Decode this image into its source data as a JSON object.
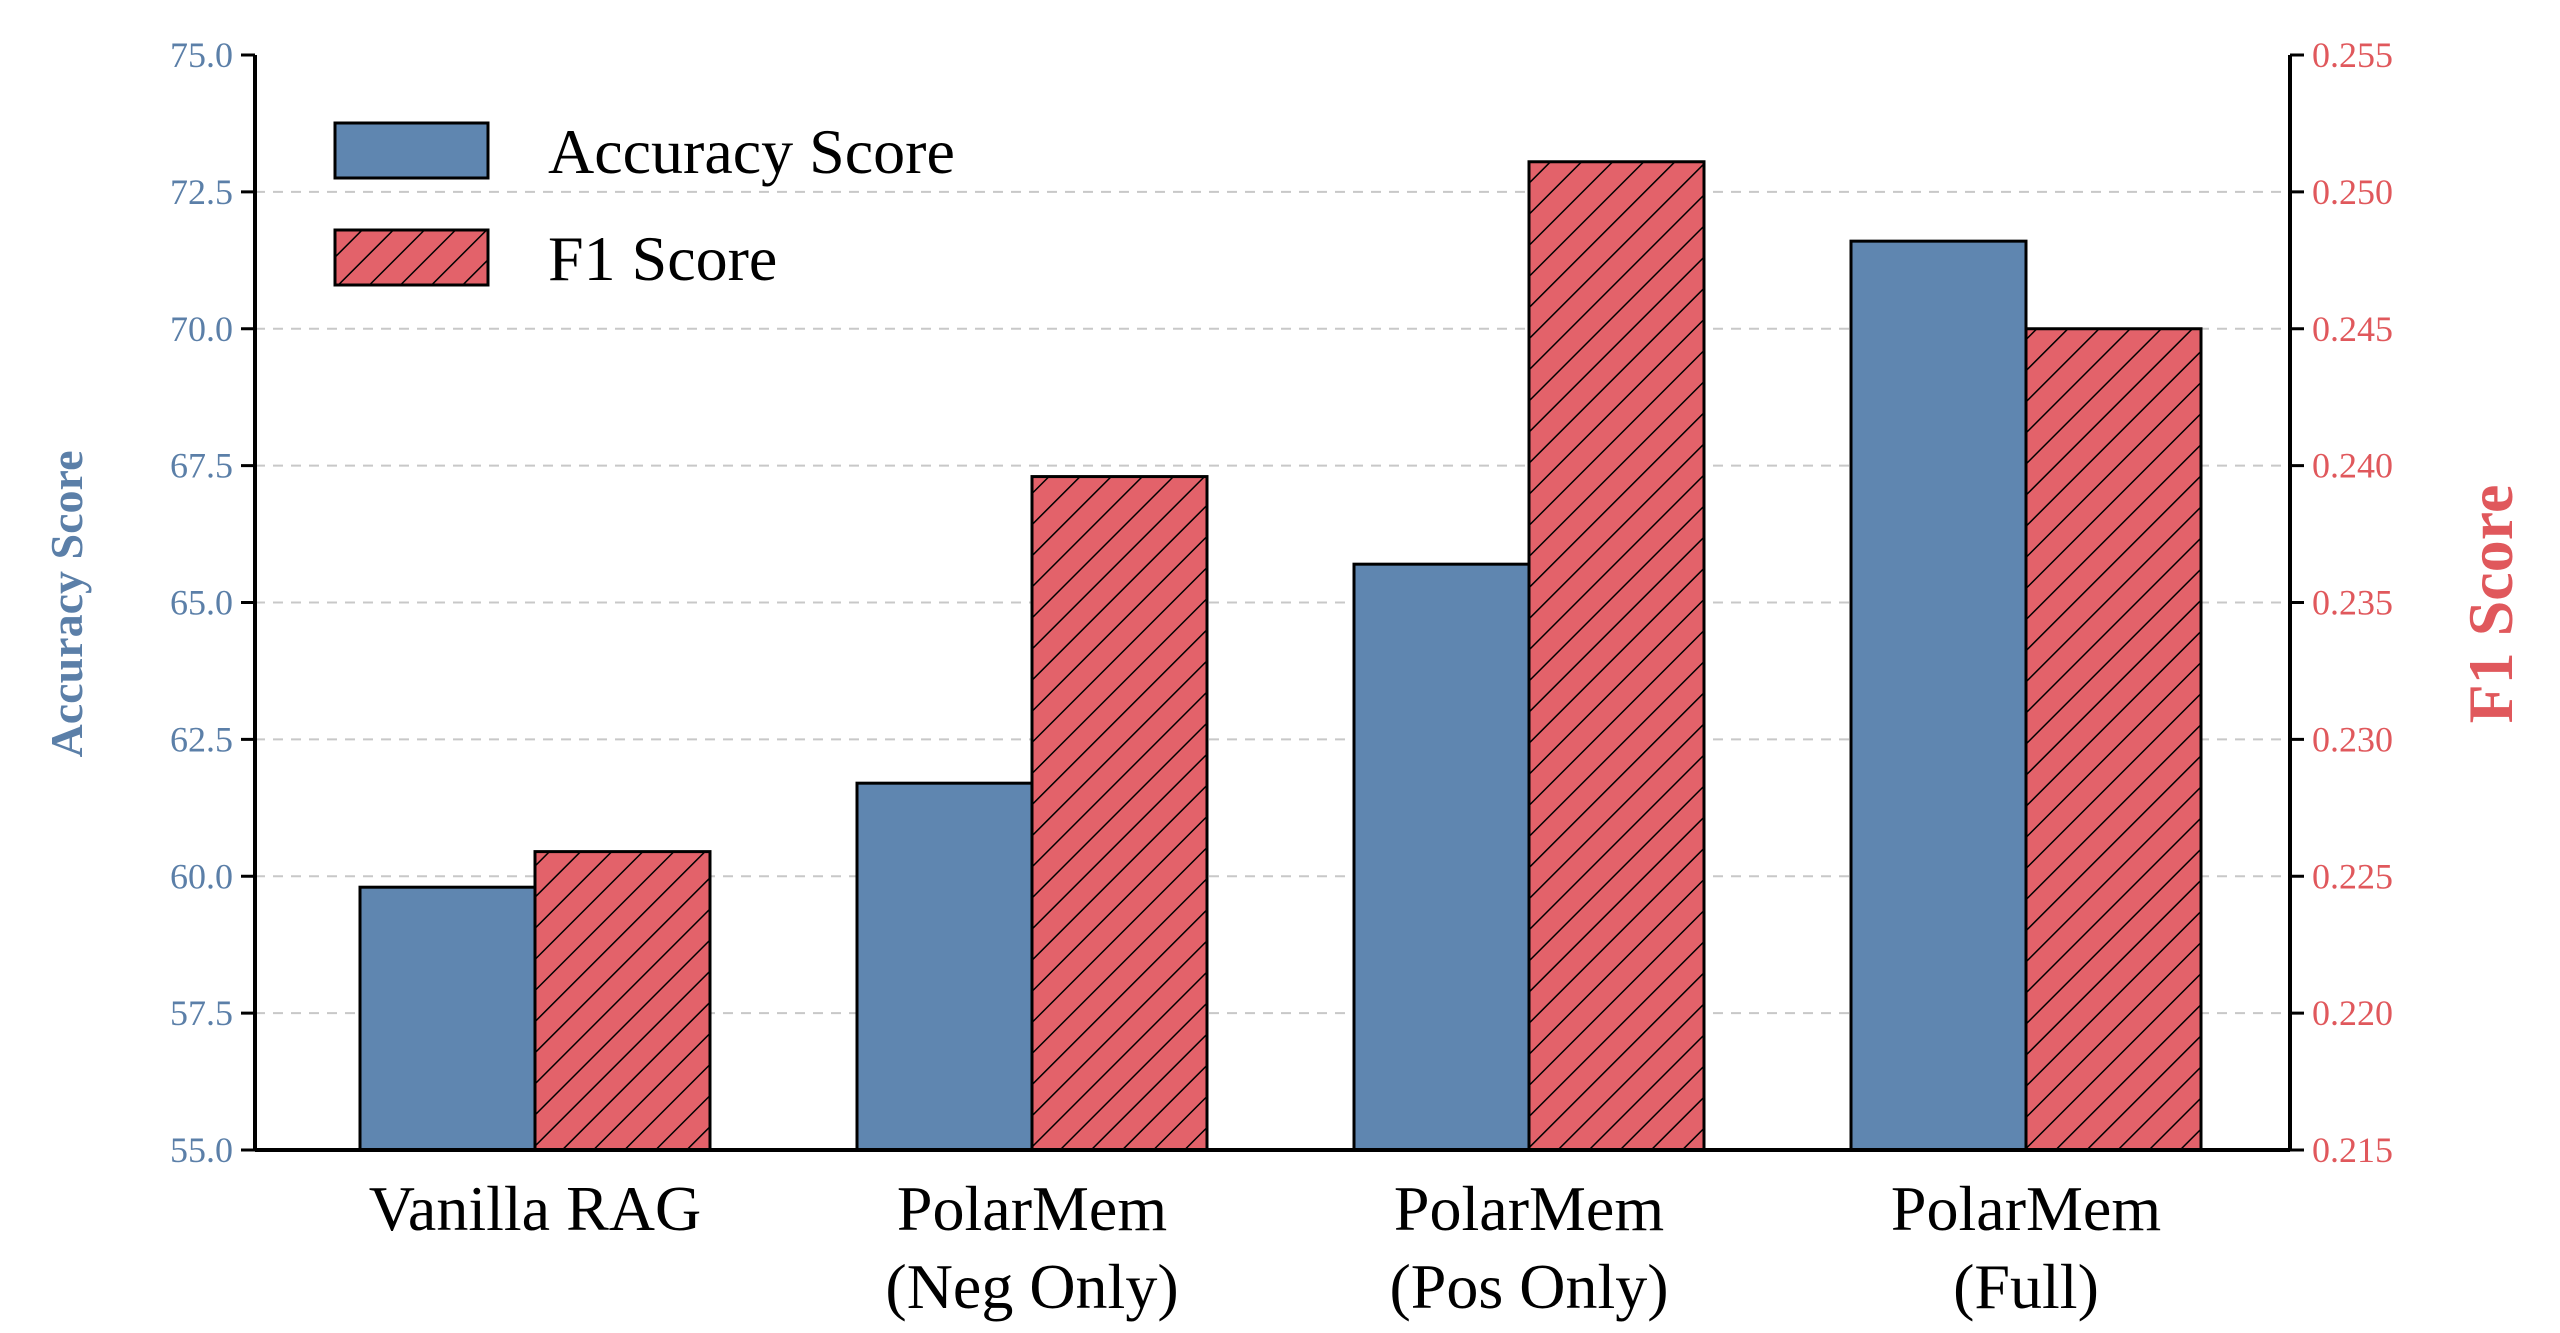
{
  "chart_data": {
    "type": "bar",
    "categories": [
      [
        "Vanilla RAG"
      ],
      [
        "PolarMem",
        "(Neg Only)"
      ],
      [
        "PolarMem",
        "(Pos Only)"
      ],
      [
        "PolarMem",
        "(Full)"
      ]
    ],
    "series": [
      {
        "name": "Accuracy Score",
        "axis": "left",
        "color": "#5f86b0",
        "hatch": false,
        "values": [
          59.8,
          61.7,
          65.7,
          71.6
        ]
      },
      {
        "name": "F1 Score",
        "axis": "right",
        "color": "#e3626a",
        "hatch": true,
        "values": [
          0.2259,
          0.2396,
          0.2511,
          0.245
        ]
      }
    ],
    "ylabel_left": "Accuracy Score",
    "ylabel_right": "F1 Score",
    "ylim_left": [
      55.0,
      75.0
    ],
    "ylim_right": [
      0.215,
      0.255
    ],
    "yticks_left": [
      "55.0",
      "57.5",
      "60.0",
      "62.5",
      "65.0",
      "67.5",
      "70.0",
      "72.5",
      "75.0"
    ],
    "yticks_right": [
      "0.215",
      "0.220",
      "0.225",
      "0.230",
      "0.235",
      "0.240",
      "0.245",
      "0.250",
      "0.255"
    ],
    "grid": "horizontal-dashed",
    "legend_position": "top-left",
    "left_axis_color": "#5b7fa8",
    "right_axis_color": "#e0585c"
  }
}
